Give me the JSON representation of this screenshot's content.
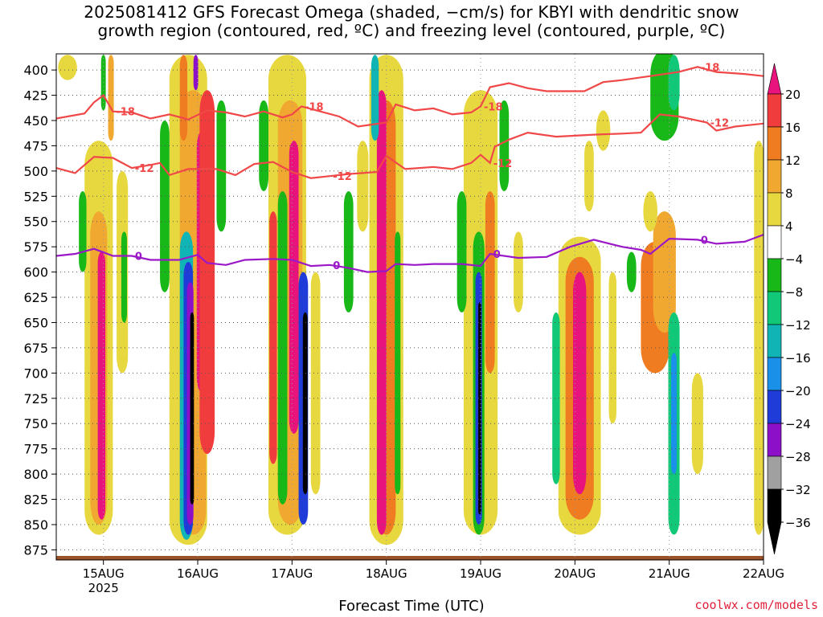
{
  "title_line1": "2025081412 GFS Forecast Omega (shaded, −cm/s) for KBYI with dendritic snow",
  "title_line2": "growth region (contoured, red, ºC) and freezing level (contoured, purple, ºC)",
  "xlabel": "Forecast Time (UTC)",
  "credit": "coolwx.com/models",
  "chart_data": {
    "type": "heatmap",
    "title": "2025081412 GFS Forecast Omega (shaded, −cm/s) for KBYI with dendritic snow growth region (contoured, red, ºC) and freezing level (contoured, purple, ºC)",
    "xlabel": "Forecast Time (UTC)",
    "ylabel": "",
    "y_ticks": [
      400,
      425,
      450,
      475,
      500,
      525,
      550,
      575,
      600,
      625,
      650,
      675,
      700,
      725,
      750,
      775,
      800,
      825,
      850,
      875
    ],
    "ylim": [
      384,
      885
    ],
    "x_ticks": [
      {
        "day": 0.5,
        "label": "15AUG",
        "sub": "2025"
      },
      {
        "day": 1.5,
        "label": "16AUG",
        "sub": ""
      },
      {
        "day": 2.5,
        "label": "17AUG",
        "sub": ""
      },
      {
        "day": 3.5,
        "label": "18AUG",
        "sub": ""
      },
      {
        "day": 4.5,
        "label": "19AUG",
        "sub": ""
      },
      {
        "day": 5.5,
        "label": "20AUG",
        "sub": ""
      },
      {
        "day": 6.5,
        "label": "21AUG",
        "sub": ""
      },
      {
        "day": 7.5,
        "label": "22AUG",
        "sub": ""
      }
    ],
    "xlim": [
      0,
      7.5
    ],
    "colorbar": {
      "labels": [
        "20",
        "16",
        "12",
        "8",
        "4",
        "−4",
        "−8",
        "−12",
        "−16",
        "−20",
        "−24",
        "−28",
        "−32",
        "−36"
      ],
      "colors": [
        "#e8137c",
        "#f03c3c",
        "#f07c22",
        "#f0a830",
        "#e8d840",
        "#ffffff",
        "#18b818",
        "#10c878",
        "#10b4b4",
        "#1a90e8",
        "#1f3cd8",
        "#8c10c8",
        "#a0a0a0",
        "#000000"
      ]
    },
    "contours": [
      {
        "name": "-18",
        "color": "#f04848",
        "labels": [
          "-18",
          "-18",
          "-18",
          "-18"
        ],
        "points": [
          [
            0,
            448
          ],
          [
            0.3,
            443
          ],
          [
            0.4,
            432
          ],
          [
            0.5,
            425
          ],
          [
            0.6,
            441
          ],
          [
            0.8,
            442
          ],
          [
            1.0,
            448
          ],
          [
            1.2,
            444
          ],
          [
            1.4,
            449
          ],
          [
            1.6,
            440
          ],
          [
            1.8,
            442
          ],
          [
            2.0,
            446
          ],
          [
            2.2,
            441
          ],
          [
            2.4,
            447
          ],
          [
            2.5,
            444
          ],
          [
            2.6,
            436
          ],
          [
            2.8,
            441
          ],
          [
            3.0,
            446
          ],
          [
            3.2,
            456
          ],
          [
            3.5,
            452
          ],
          [
            3.6,
            434
          ],
          [
            3.8,
            440
          ],
          [
            4.0,
            438
          ],
          [
            4.2,
            444
          ],
          [
            4.4,
            442
          ],
          [
            4.5,
            436
          ],
          [
            4.6,
            417
          ],
          [
            4.8,
            413
          ],
          [
            5.0,
            418
          ],
          [
            5.2,
            421
          ],
          [
            5.6,
            421
          ],
          [
            5.8,
            412
          ],
          [
            6.0,
            410
          ],
          [
            6.3,
            406
          ],
          [
            6.6,
            402
          ],
          [
            6.8,
            397
          ],
          [
            7.0,
            402
          ],
          [
            7.3,
            404
          ],
          [
            7.5,
            406
          ]
        ]
      },
      {
        "name": "-12",
        "color": "#f04848",
        "labels": [
          "-12",
          "-12",
          "-12",
          "-12"
        ],
        "points": [
          [
            0,
            497
          ],
          [
            0.2,
            502
          ],
          [
            0.4,
            486
          ],
          [
            0.6,
            487
          ],
          [
            0.8,
            497
          ],
          [
            1.0,
            494
          ],
          [
            1.1,
            492
          ],
          [
            1.2,
            504
          ],
          [
            1.4,
            498
          ],
          [
            1.7,
            498
          ],
          [
            1.9,
            504
          ],
          [
            2.1,
            493
          ],
          [
            2.3,
            491
          ],
          [
            2.5,
            501
          ],
          [
            2.7,
            507
          ],
          [
            2.9,
            505
          ],
          [
            3.1,
            503
          ],
          [
            3.4,
            501
          ],
          [
            3.5,
            485
          ],
          [
            3.7,
            498
          ],
          [
            4.0,
            496
          ],
          [
            4.2,
            498
          ],
          [
            4.4,
            492
          ],
          [
            4.5,
            484
          ],
          [
            4.6,
            492
          ],
          [
            4.65,
            476
          ],
          [
            4.8,
            469
          ],
          [
            5.0,
            462
          ],
          [
            5.3,
            466
          ],
          [
            5.7,
            464
          ],
          [
            6.0,
            463
          ],
          [
            6.2,
            462
          ],
          [
            6.4,
            444
          ],
          [
            6.6,
            446
          ],
          [
            6.9,
            452
          ],
          [
            7.0,
            460
          ],
          [
            7.2,
            456
          ],
          [
            7.5,
            453
          ]
        ]
      },
      {
        "name": "0",
        "color": "#9b18c8",
        "labels": [
          "0",
          "0",
          "0",
          "0"
        ],
        "points": [
          [
            0,
            584
          ],
          [
            0.2,
            582
          ],
          [
            0.4,
            577
          ],
          [
            0.6,
            584
          ],
          [
            0.8,
            584
          ],
          [
            1.0,
            588
          ],
          [
            1.3,
            588
          ],
          [
            1.5,
            583
          ],
          [
            1.6,
            591
          ],
          [
            1.8,
            593
          ],
          [
            2.0,
            588
          ],
          [
            2.3,
            587
          ],
          [
            2.5,
            588
          ],
          [
            2.7,
            594
          ],
          [
            2.9,
            593
          ],
          [
            3.1,
            596
          ],
          [
            3.3,
            600
          ],
          [
            3.5,
            599
          ],
          [
            3.6,
            592
          ],
          [
            3.8,
            593
          ],
          [
            4.0,
            592
          ],
          [
            4.3,
            592
          ],
          [
            4.5,
            594
          ],
          [
            4.6,
            582
          ],
          [
            4.9,
            586
          ],
          [
            5.2,
            585
          ],
          [
            5.45,
            575
          ],
          [
            5.7,
            568
          ],
          [
            6.0,
            575
          ],
          [
            6.2,
            578
          ],
          [
            6.3,
            582
          ],
          [
            6.5,
            567
          ],
          [
            6.8,
            568
          ],
          [
            7.0,
            572
          ],
          [
            7.3,
            570
          ],
          [
            7.5,
            563
          ]
        ]
      }
    ],
    "grid": true
  }
}
